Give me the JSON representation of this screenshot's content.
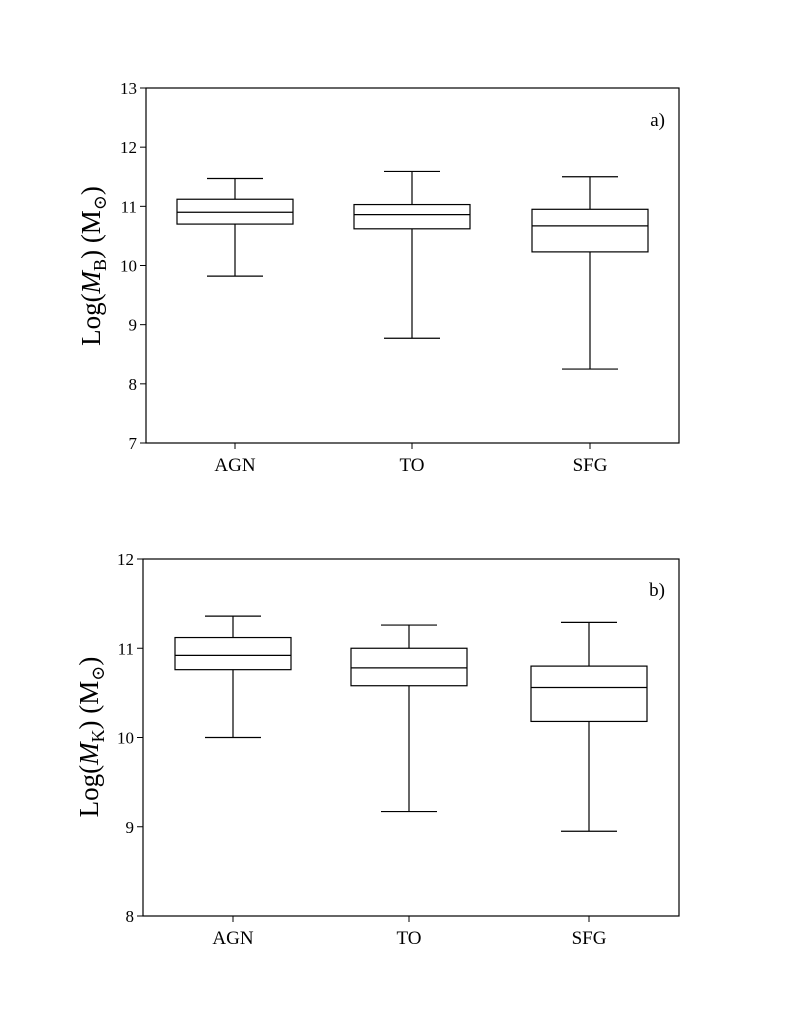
{
  "chart_data": [
    {
      "type": "box",
      "panel_label": "a)",
      "ylabel": {
        "prefix": "Log(",
        "italic": "M",
        "sub": "B",
        "middle": ") (M",
        "sun_sub": "⊙",
        "suffix": ")"
      },
      "ylim": [
        7,
        13
      ],
      "yticks": [
        7,
        8,
        9,
        10,
        11,
        12,
        13
      ],
      "categories": [
        "AGN",
        "TO",
        "SFG"
      ],
      "boxes": [
        {
          "min": 9.82,
          "q1": 10.7,
          "median": 10.9,
          "q3": 11.12,
          "max": 11.47
        },
        {
          "min": 8.77,
          "q1": 10.62,
          "median": 10.86,
          "q3": 11.03,
          "max": 11.59
        },
        {
          "min": 8.25,
          "q1": 10.23,
          "median": 10.67,
          "q3": 10.95,
          "max": 11.5
        }
      ],
      "grid": false
    },
    {
      "type": "box",
      "panel_label": "b)",
      "ylabel": {
        "prefix": "Log(",
        "italic": "M",
        "sub": "K",
        "middle": ") (M",
        "sun_sub": "⊙",
        "suffix": ")"
      },
      "ylim": [
        8,
        12
      ],
      "yticks": [
        8,
        9,
        10,
        11,
        12
      ],
      "categories": [
        "AGN",
        "TO",
        "SFG"
      ],
      "boxes": [
        {
          "min": 10.0,
          "q1": 10.76,
          "median": 10.92,
          "q3": 11.12,
          "max": 11.36
        },
        {
          "min": 9.17,
          "q1": 10.58,
          "median": 10.78,
          "q3": 11.0,
          "max": 11.26
        },
        {
          "min": 8.95,
          "q1": 10.18,
          "median": 10.56,
          "q3": 10.8,
          "max": 11.29
        }
      ],
      "grid": false
    }
  ]
}
